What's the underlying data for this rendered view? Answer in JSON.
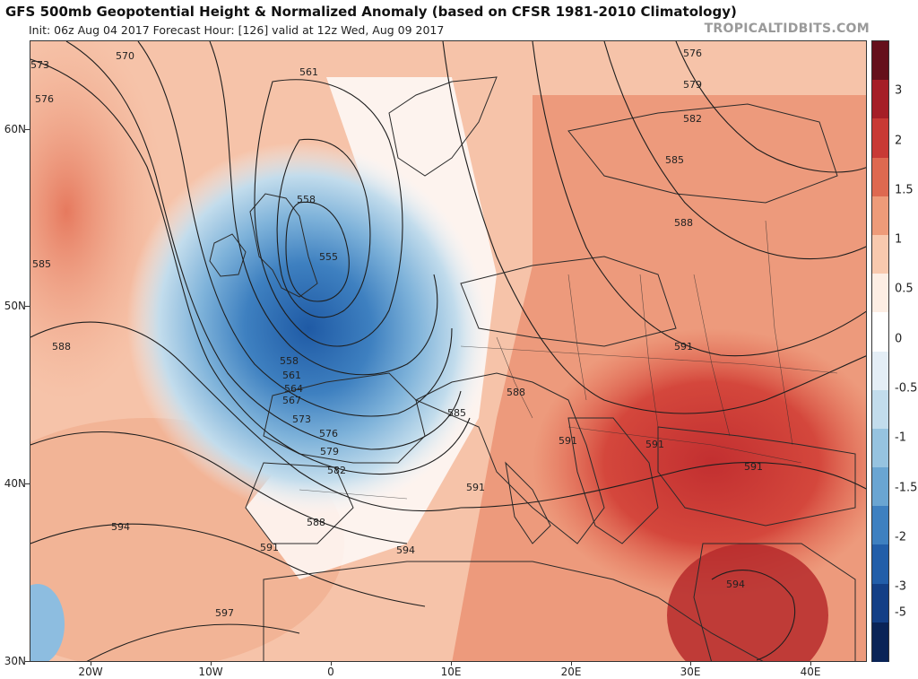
{
  "header": {
    "title": "GFS 500mb Geopotential Height & Normalized Anomaly (based on CFSR 1981-2010 Climatology)",
    "subtitle": "Init: 06z Aug 04 2017   Forecast Hour: [126]   valid at 12z Wed, Aug 09 2017",
    "brand": "TROPICALTIDBITS.COM"
  },
  "map": {
    "lat_labels": [
      "60N",
      "50N",
      "40N",
      "30N"
    ],
    "lon_labels": [
      "20W",
      "10W",
      "0",
      "10E",
      "20E",
      "30E",
      "40E"
    ],
    "contour_labels": [
      "573",
      "570",
      "576",
      "561",
      "558",
      "555",
      "585",
      "588",
      "558",
      "561",
      "564",
      "567",
      "573",
      "576",
      "579",
      "582",
      "588",
      "591",
      "594",
      "597",
      "591",
      "594",
      "585",
      "588",
      "591",
      "591",
      "591",
      "591",
      "594",
      "576",
      "579",
      "582",
      "585",
      "588"
    ],
    "colors": {
      "land_border": "#2a2a2a",
      "contour": "#1e1e1e"
    }
  },
  "colorbar": {
    "labels": [
      "3",
      "2",
      "1.5",
      "1",
      "0.5",
      "0",
      "-0.5",
      "-1",
      "-1.5",
      "-2",
      "-3",
      "-5"
    ],
    "colors": [
      "#65101b",
      "#a51e27",
      "#c83a35",
      "#de6950",
      "#ee9b79",
      "#f8c9ae",
      "#fdeee4",
      "#ffffff",
      "#e4eef6",
      "#c2dcec",
      "#96c3e0",
      "#6aa5d2",
      "#3e80c0",
      "#225ea9",
      "#133f86",
      "#0a2457"
    ]
  }
}
